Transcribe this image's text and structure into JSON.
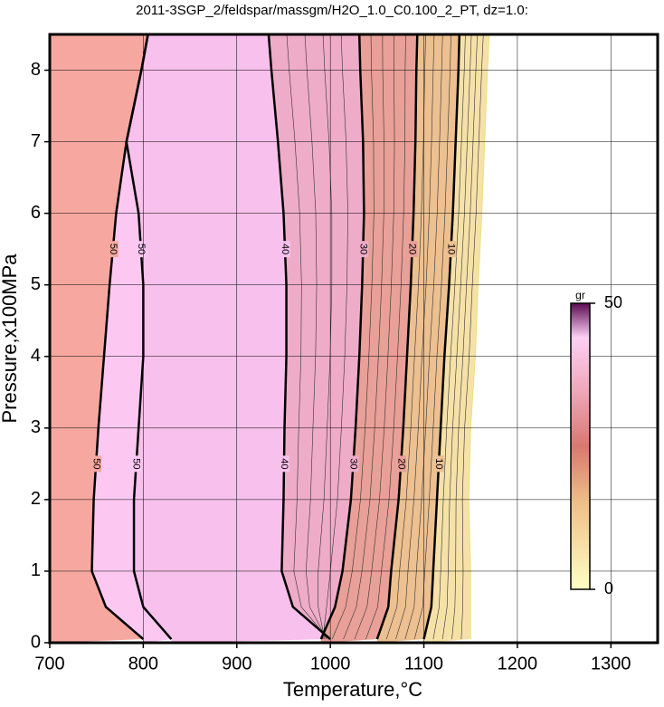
{
  "chart_data": {
    "type": "contour",
    "title": "2011-3SGP_2/feldspar/massgm/H2O_1.0_C0.100_2_PT, dz=1.0:",
    "xlabel": "Temperature,°C",
    "ylabel": "Pressure,x100MPa",
    "xlim": [
      700,
      1350
    ],
    "xticks": [
      700,
      800,
      900,
      1000,
      1100,
      1200,
      1300
    ],
    "ylim": [
      0,
      8.5
    ],
    "yticks": [
      0,
      1,
      2,
      3,
      4,
      5,
      6,
      7,
      8
    ],
    "grid": true,
    "pressures": [
      0.05,
      0.5,
      1,
      2,
      3,
      4,
      5,
      6,
      7,
      8,
      8.5
    ],
    "contours": [
      {
        "level": 50,
        "label": "50",
        "fill": "#f6a8a0",
        "temperature": [
          800,
          760,
          745,
          747,
          752,
          758,
          764,
          771,
          782,
          798,
          805
        ]
      },
      {
        "level": 50,
        "label": "50",
        "fill": "#fcc8f2",
        "temperature": [
          830,
          800,
          790,
          790,
          795,
          800,
          800,
          795,
          782,
          798,
          805
        ]
      },
      {
        "level": 40,
        "label": "40",
        "fill": "#f8c0ec",
        "temperature": [
          1000,
          960,
          948,
          950,
          951,
          953,
          953,
          950,
          944,
          937,
          934
        ]
      },
      {
        "level": 30,
        "label": "30",
        "fill": "#eeacc8",
        "temperature": [
          990,
          1005,
          1013,
          1022,
          1027,
          1031,
          1034,
          1036,
          1035,
          1032,
          1031
        ]
      },
      {
        "level": 20,
        "label": "20",
        "fill": "#e8a098",
        "temperature": [
          1050,
          1062,
          1065,
          1073,
          1078,
          1082,
          1086,
          1089,
          1091,
          1092,
          1093
        ]
      },
      {
        "level": 10,
        "label": "10",
        "fill": "#ecc090",
        "temperature": [
          1100,
          1108,
          1110,
          1114,
          1118,
          1122,
          1127,
          1131,
          1134,
          1137,
          1138
        ]
      },
      {
        "level": 0,
        "fill": "#f6e2a8",
        "temperature": [
          1150,
          1150,
          1150,
          1148,
          1150,
          1155,
          1158,
          1162,
          1165,
          1168,
          1170
        ]
      }
    ],
    "colorbar": {
      "label": "gr",
      "lim": [
        0,
        50
      ],
      "ticks": [
        0,
        50
      ],
      "colors": [
        {
          "value": 0,
          "color": "#ffffc4"
        },
        {
          "value": 15,
          "color": "#eec088"
        },
        {
          "value": 25,
          "color": "#d87870"
        },
        {
          "value": 35,
          "color": "#f0a8bc"
        },
        {
          "value": 44,
          "color": "#fcd0f4"
        },
        {
          "value": 50,
          "color": "#5a0a50"
        }
      ]
    }
  }
}
